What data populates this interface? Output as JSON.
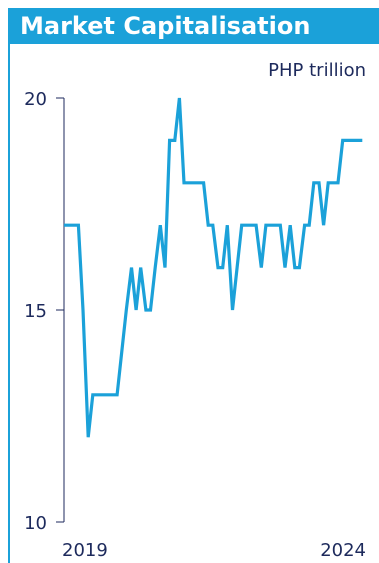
{
  "title": "Market Capitalisation",
  "unit_label": "PHP trillion",
  "colors": {
    "accent": "#1ba1d9",
    "text": "#1d2a5c",
    "axis": "#1d2a5c",
    "line": "#1ba1d9"
  },
  "chart_data": {
    "type": "line",
    "title": "Market Capitalisation",
    "ylabel": "PHP trillion",
    "xlabel": "",
    "ylim": [
      10,
      20
    ],
    "yticks": [
      10,
      15,
      20
    ],
    "xlim": [
      2019.0,
      2024.2
    ],
    "xtick_labels": [
      {
        "label": "2019",
        "x": 2019.0
      },
      {
        "label": "2024",
        "x": 2024.2
      }
    ],
    "grid": false,
    "series": [
      {
        "x": [
          2019.0,
          2019.08,
          2019.17,
          2019.25,
          2019.33,
          2019.42,
          2019.5,
          2019.58,
          2019.67,
          2019.75,
          2019.83,
          2019.92,
          2020.0,
          2020.08,
          2020.17,
          2020.25,
          2020.33,
          2020.42,
          2020.5,
          2020.58,
          2020.67,
          2020.75,
          2020.83,
          2020.92,
          2021.0,
          2021.08,
          2021.17,
          2021.25,
          2021.33,
          2021.42,
          2021.5,
          2021.58,
          2021.67,
          2021.75,
          2021.83,
          2021.92,
          2022.0,
          2022.08,
          2022.17,
          2022.25,
          2022.33,
          2022.42,
          2022.5,
          2022.58,
          2022.67,
          2022.75,
          2022.83,
          2022.92,
          2023.0,
          2023.08,
          2023.17,
          2023.25,
          2023.33,
          2023.42,
          2023.5,
          2023.58,
          2023.67,
          2023.75,
          2023.83,
          2023.92,
          2024.0,
          2024.08,
          2024.17
        ],
        "y": [
          17,
          17,
          17,
          17,
          15,
          12,
          13,
          13,
          13,
          13,
          13,
          13,
          14,
          15,
          16,
          15,
          16,
          15,
          15,
          16,
          17,
          16,
          19,
          19,
          20,
          18,
          18,
          18,
          18,
          18,
          17,
          17,
          16,
          16,
          17,
          15,
          16,
          17,
          17,
          17,
          17,
          16,
          17,
          17,
          17,
          17,
          16,
          17,
          16,
          16,
          17,
          17,
          18,
          18,
          17,
          18,
          18,
          18,
          19,
          19,
          19,
          19,
          19
        ]
      }
    ]
  }
}
